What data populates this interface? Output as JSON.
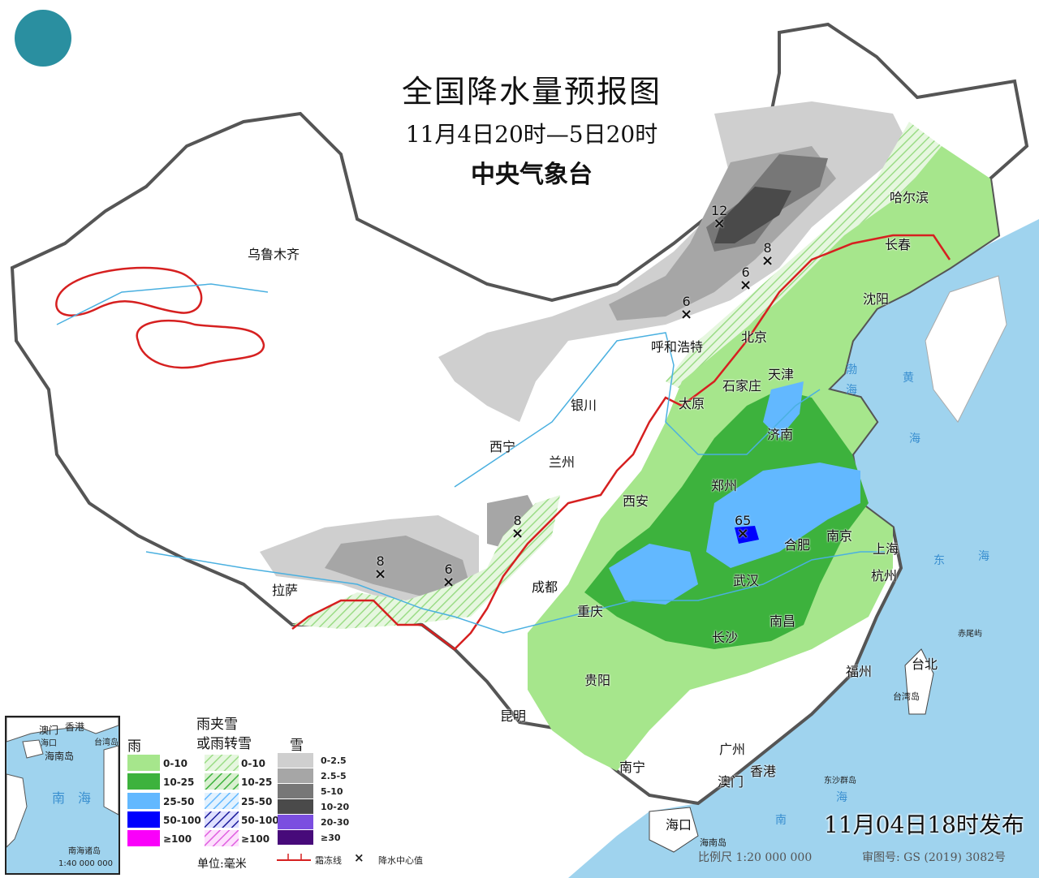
{
  "header": {
    "title": "全国降水量预报图",
    "period": "11月4日20时—5日20时",
    "issuer": "中央气象台"
  },
  "logo": {
    "icon": "cma-logo-icon",
    "color": "#2a8fa0"
  },
  "cities": [
    {
      "name": "乌鲁木齐"
    },
    {
      "name": "哈尔滨"
    },
    {
      "name": "长春"
    },
    {
      "name": "沈阳"
    },
    {
      "name": "北京"
    },
    {
      "name": "天津"
    },
    {
      "name": "呼和浩特"
    },
    {
      "name": "石家庄"
    },
    {
      "name": "太原"
    },
    {
      "name": "济南"
    },
    {
      "name": "银川"
    },
    {
      "name": "西宁"
    },
    {
      "name": "兰州"
    },
    {
      "name": "郑州"
    },
    {
      "name": "西安"
    },
    {
      "name": "合肥"
    },
    {
      "name": "南京"
    },
    {
      "name": "上海"
    },
    {
      "name": "杭州"
    },
    {
      "name": "武汉"
    },
    {
      "name": "成都"
    },
    {
      "name": "重庆"
    },
    {
      "name": "拉萨"
    },
    {
      "name": "长沙"
    },
    {
      "name": "南昌"
    },
    {
      "name": "贵阳"
    },
    {
      "name": "福州"
    },
    {
      "name": "台北"
    },
    {
      "name": "昆明"
    },
    {
      "name": "南宁"
    },
    {
      "name": "广州"
    },
    {
      "name": "香港"
    },
    {
      "name": "澳门"
    },
    {
      "name": "海口"
    }
  ],
  "sea_labels": [
    "渤",
    "海",
    "黄",
    "海",
    "东",
    "海",
    "南",
    "海",
    "台湾岛",
    "海南岛",
    "东沙群岛",
    "赤尾屿"
  ],
  "precip_centers": [
    {
      "value": "12"
    },
    {
      "value": "8"
    },
    {
      "value": "6"
    },
    {
      "value": "6"
    },
    {
      "value": "8"
    },
    {
      "value": "8"
    },
    {
      "value": "6"
    },
    {
      "value": "65"
    }
  ],
  "legend": {
    "rain": {
      "title": "雨",
      "items": [
        {
          "label": "0-10",
          "color": "#a6e68c"
        },
        {
          "label": "10-25",
          "color": "#3db23d"
        },
        {
          "label": "25-50",
          "color": "#62b8ff"
        },
        {
          "label": "50-100",
          "color": "#0000fe"
        },
        {
          "label": "≥100",
          "color": "#fa00fa"
        }
      ]
    },
    "mixed": {
      "title_line1": "雨夹雪",
      "title_line2": "或雨转雪",
      "items": [
        {
          "label": "0-10",
          "color": "#a6e68c"
        },
        {
          "label": "10-25",
          "color": "#3db23d"
        },
        {
          "label": "25-50",
          "color": "#62b8ff"
        },
        {
          "label": "50-100",
          "color": "#0000fe"
        },
        {
          "label": "≥100",
          "color": "#fa00fa"
        }
      ]
    },
    "snow": {
      "title": "雪",
      "items": [
        {
          "label": "0-2.5",
          "color": "#cfcfcf"
        },
        {
          "label": "2.5-5",
          "color": "#a6a6a6"
        },
        {
          "label": "5-10",
          "color": "#777777"
        },
        {
          "label": "10-20",
          "color": "#4a4a4a"
        },
        {
          "label": "20-30",
          "color": "#7b4ee0"
        },
        {
          "label": "≥30",
          "color": "#470a7a"
        }
      ]
    },
    "unit": "单位:毫米",
    "freeze_line": "霜冻线",
    "center_value": "降水中心值"
  },
  "inset": {
    "labels": [
      "澳门",
      "香港",
      "台湾岛",
      "海口",
      "海南岛",
      "南",
      "海",
      "南海诸岛"
    ],
    "scale": "1:40 000 000"
  },
  "footer": {
    "issue_time": "11月04日18时发布",
    "scale": "比例尺 1:20 000 000",
    "approval": "审图号: GS (2019) 3082号"
  }
}
